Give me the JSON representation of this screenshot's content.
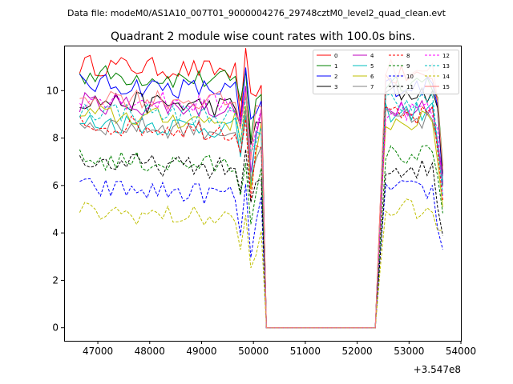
{
  "header": {
    "data_file_text": "Data file: modeM0/AS1A10_007T01_9000004276_29748cztM0_level2_quad_clean.evt"
  },
  "chart_data": {
    "type": "line",
    "title": "Quadrant 2 module wise count rates with 100.0s bins.",
    "xlabel": "",
    "ylabel": "",
    "x_offset_text": "+3.547e8",
    "xlim": [
      46350,
      54000
    ],
    "ylim": [
      -0.55,
      11.9
    ],
    "xticks": [
      47000,
      48000,
      49000,
      50000,
      51000,
      52000,
      53000,
      54000
    ],
    "yticks": [
      0,
      2,
      4,
      6,
      8,
      10
    ],
    "grid": false,
    "legend_position": "top-right",
    "legend_columns": 4,
    "segments": [
      {
        "x_start": 46650,
        "step": 100,
        "count": 36
      },
      {
        "x_start": 50250,
        "step": 100,
        "count": 22,
        "zero": true
      },
      {
        "x_start": 52450,
        "step": 100,
        "count": 13
      }
    ],
    "series": [
      {
        "name": "0",
        "color": "#ff0000",
        "dash": "solid",
        "level1": 11.1,
        "level2": 10.6
      },
      {
        "name": "1",
        "color": "#008000",
        "dash": "solid",
        "level1": 10.7,
        "level2": 10.4
      },
      {
        "name": "2",
        "color": "#0000ff",
        "dash": "solid",
        "level1": 10.3,
        "level2": 10.2
      },
      {
        "name": "3",
        "color": "#000000",
        "dash": "solid",
        "level1": 9.6,
        "level2": 9.9
      },
      {
        "name": "4",
        "color": "#bf00bf",
        "dash": "solid",
        "level1": 9.5,
        "level2": 9.4
      },
      {
        "name": "5",
        "color": "#00bfbf",
        "dash": "solid",
        "level1": 8.7,
        "level2": 9.1
      },
      {
        "name": "6",
        "color": "#bfbf00",
        "dash": "solid",
        "level1": 9.0,
        "level2": 8.7
      },
      {
        "name": "7",
        "color": "#808080",
        "dash": "solid",
        "level1": 8.6,
        "level2": 8.8
      },
      {
        "name": "8",
        "color": "#ff0000",
        "dash": "dashed",
        "level1": 8.6,
        "level2": 8.9
      },
      {
        "name": "9",
        "color": "#008000",
        "dash": "dashed",
        "level1": 7.1,
        "level2": 7.3
      },
      {
        "name": "10",
        "color": "#0000ff",
        "dash": "dashed",
        "level1": 5.9,
        "level2": 5.8
      },
      {
        "name": "11",
        "color": "#000000",
        "dash": "dashed",
        "level1": 7.0,
        "level2": 6.7
      },
      {
        "name": "12",
        "color": "#ff00ff",
        "dash": "dashed",
        "level1": 9.7,
        "level2": 9.2
      },
      {
        "name": "13",
        "color": "#00bfbf",
        "dash": "dashed",
        "level1": 9.2,
        "level2": 9.6
      },
      {
        "name": "14",
        "color": "#bfbf00",
        "dash": "dashed",
        "level1": 4.9,
        "level2": 5.0
      },
      {
        "name": "15",
        "color": "#ff7f7f",
        "dash": "solid",
        "level1": 9.8,
        "level2": 10.9
      }
    ]
  }
}
